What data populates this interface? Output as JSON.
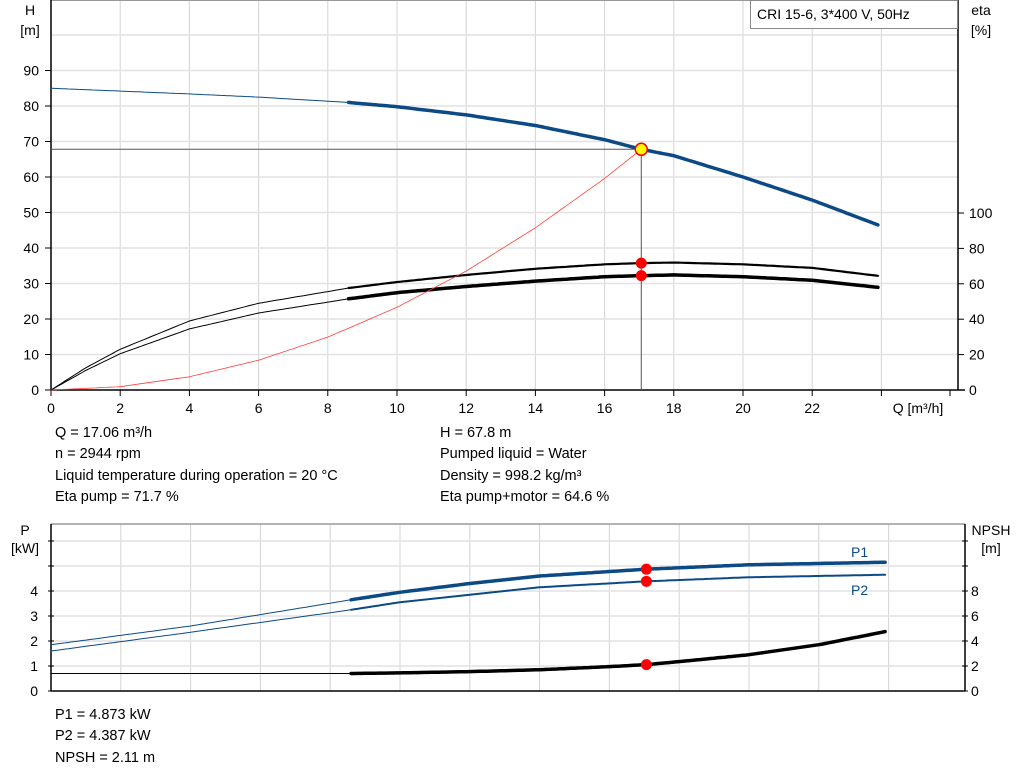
{
  "chart_data": [
    {
      "type": "line",
      "legend_box": "CRI 15-6, 3*400 V, 50Hz",
      "xlabel": "Q [m³/h]",
      "ylabel_left": [
        "H",
        "[m]"
      ],
      "ylabel_right": [
        "eta",
        "[%]"
      ],
      "xlim": [
        0,
        24
      ],
      "ylim_left": [
        0,
        100
      ],
      "ylim_right": [
        0,
        100
      ],
      "x_ticks": [
        0,
        2,
        4,
        6,
        8,
        10,
        12,
        14,
        16,
        18,
        20,
        22
      ],
      "y_ticks_left": [
        0,
        10,
        20,
        30,
        40,
        50,
        60,
        70,
        80,
        90
      ],
      "y_ticks_right": [
        0,
        20,
        40,
        60,
        80,
        100
      ],
      "grid": true,
      "series": [
        {
          "key": "H",
          "axis": "left",
          "color": "#0c4a86",
          "x": [
            0,
            2,
            4,
            6,
            8.6,
            10,
            12,
            14,
            16,
            17.06,
            18,
            20,
            22,
            23.9
          ],
          "y": [
            85,
            84.2,
            83.4,
            82.5,
            81,
            79.8,
            77.5,
            74.5,
            70.5,
            67.8,
            66,
            60,
            53.5,
            46.5
          ],
          "thick_from": 8.6
        },
        {
          "key": "eta_pump",
          "axis": "right",
          "color": "#000000",
          "x": [
            0,
            1,
            2,
            4,
            6,
            8.6,
            10,
            12,
            14,
            16,
            17.06,
            18,
            20,
            22,
            23.9
          ],
          "y": [
            0,
            12.5,
            23,
            39,
            49,
            57.6,
            61,
            65,
            68.5,
            71,
            71.7,
            72,
            71,
            69,
            64.5
          ],
          "thick_from": 8.6
        },
        {
          "key": "eta_pump_motor",
          "axis": "right",
          "color": "#000000",
          "x": [
            0,
            1,
            2,
            4,
            6,
            8.6,
            10,
            12,
            14,
            16,
            17.06,
            18,
            20,
            22,
            23.9
          ],
          "y": [
            0,
            11,
            20.5,
            34.5,
            43.5,
            51.5,
            55,
            58.5,
            61.5,
            64,
            64.6,
            65,
            64,
            62,
            58
          ],
          "thick_from": 8.6
        },
        {
          "key": "system_curve",
          "axis": "left",
          "color": "#ff4040",
          "x": [
            0,
            2,
            4,
            6,
            8,
            10,
            12,
            14,
            16,
            17.06
          ],
          "y": [
            0,
            0.93,
            3.73,
            8.39,
            14.9,
            23.3,
            33.5,
            45.7,
            59.6,
            67.8
          ]
        }
      ],
      "operating_point": {
        "Q": 17.06,
        "H": 67.8,
        "eta_pump": 71.7,
        "eta_pump_motor": 64.6
      }
    },
    {
      "type": "line",
      "xlim": [
        0,
        24
      ],
      "ylabel_left": [
        "P",
        "[kW]"
      ],
      "ylabel_right": [
        "NPSH",
        "[m]"
      ],
      "ylim_left": [
        0,
        6
      ],
      "ylim_right": [
        0,
        12
      ],
      "y_ticks_left": [
        0,
        1,
        2,
        3,
        4
      ],
      "y_ticks_right": [
        0,
        2,
        4,
        6,
        8
      ],
      "grid": true,
      "series": [
        {
          "key": "P1",
          "name": "P1",
          "axis": "left",
          "color": "#0c4a86",
          "x": [
            0,
            4,
            8.6,
            10,
            12,
            14,
            17.06,
            20,
            23.9
          ],
          "y": [
            1.85,
            2.6,
            3.65,
            3.95,
            4.3,
            4.6,
            4.873,
            5.05,
            5.15
          ],
          "thick_from": 8.6
        },
        {
          "key": "P2",
          "name": "P2",
          "axis": "left",
          "color": "#0c4a86",
          "x": [
            0,
            4,
            8.6,
            10,
            12,
            14,
            17.06,
            20,
            23.9
          ],
          "y": [
            1.6,
            2.35,
            3.25,
            3.55,
            3.85,
            4.15,
            4.387,
            4.55,
            4.65
          ],
          "thick_from": 8.6
        },
        {
          "key": "NPSH",
          "axis": "right",
          "color": "#000000",
          "x": [
            0,
            8.6,
            10,
            12,
            14,
            16,
            17.06,
            18,
            20,
            22,
            23.9
          ],
          "y": [
            1.4,
            1.4,
            1.45,
            1.55,
            1.7,
            1.95,
            2.11,
            2.35,
            2.9,
            3.7,
            4.75
          ],
          "thick_from": 8.6
        }
      ],
      "operating_point": {
        "Q": 17.06,
        "P1": 4.873,
        "P2": 4.387,
        "NPSH": 2.11
      }
    }
  ],
  "info_top_left": [
    "Q = 17.06 m³/h",
    "n = 2944 rpm",
    "Liquid temperature during operation = 20 °C",
    "Eta pump = 71.7 %"
  ],
  "info_top_right": [
    "H = 67.8 m",
    "Pumped liquid = Water",
    "Density = 998.2 kg/m³",
    "Eta pump+motor = 64.6 %"
  ],
  "info_bottom": [
    "P1 = 4.873 kW",
    "P2 = 4.387 kW",
    "NPSH = 2.11 m"
  ]
}
